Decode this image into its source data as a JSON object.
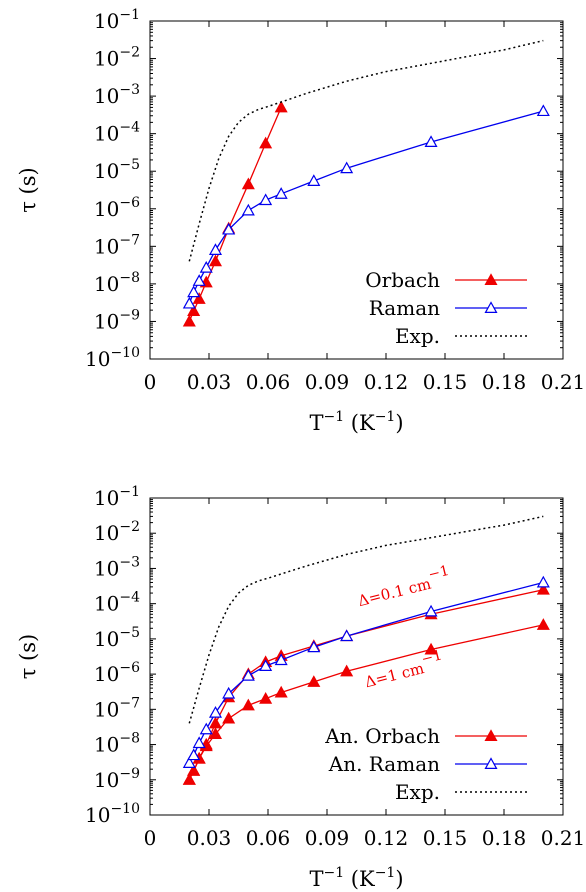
{
  "colors": {
    "orbach": "#ee0000",
    "raman": "#0000ee",
    "exp": "#000000"
  },
  "chart_data": [
    {
      "type": "line",
      "xlabel": "T−1 (K−1)",
      "ylabel": "τ (s)",
      "xlim": [
        0,
        0.21
      ],
      "ylim": [
        1e-10,
        0.1
      ],
      "yscale": "log",
      "xticks": [
        "0",
        "0.03",
        "0.06",
        "0.09",
        "0.12",
        "0.15",
        "0.18",
        "0.21"
      ],
      "yticks": [
        "10−10",
        "10−9",
        "10−8",
        "10−7",
        "10−6",
        "10−5",
        "10−4",
        "10−3",
        "10−2",
        "10−1"
      ],
      "legend_position": "bottom-right",
      "series": [
        {
          "name": "Orbach",
          "marker": "filled-triangle",
          "style": "solid",
          "color": "#ee0000",
          "x": [
            0.02,
            0.0222,
            0.025,
            0.0286,
            0.0333,
            0.04,
            0.05,
            0.0588,
            0.0667
          ],
          "y": [
            1e-09,
            1.9e-09,
            4e-09,
            1.1e-08,
            4e-08,
            3e-07,
            4.5e-06,
            5.5e-05,
            0.0005
          ]
        },
        {
          "name": "Raman",
          "marker": "open-triangle",
          "style": "solid",
          "color": "#0000ee",
          "x": [
            0.02,
            0.0222,
            0.025,
            0.0286,
            0.0333,
            0.04,
            0.05,
            0.0588,
            0.0667,
            0.0833,
            0.1,
            0.1429,
            0.2
          ],
          "y": [
            3e-09,
            6e-09,
            1.2e-08,
            2.7e-08,
            8e-08,
            2.8e-07,
            9e-07,
            1.7e-06,
            2.5e-06,
            5.5e-06,
            1.2e-05,
            6e-05,
            0.0004
          ]
        },
        {
          "name": "Exp.",
          "marker": "none",
          "style": "dotted",
          "color": "#000000",
          "x": [
            0.02,
            0.025,
            0.03,
            0.035,
            0.04,
            0.045,
            0.05,
            0.055,
            0.06,
            0.07,
            0.08,
            0.1,
            0.12,
            0.14,
            0.16,
            0.18,
            0.2
          ],
          "y": [
            4e-08,
            4e-07,
            3.5e-06,
            2.2e-05,
            8.5e-05,
            0.0002,
            0.00033,
            0.00044,
            0.00053,
            0.0008,
            0.0012,
            0.0025,
            0.0045,
            0.007,
            0.011,
            0.017,
            0.03
          ]
        }
      ]
    },
    {
      "type": "line",
      "xlabel": "T−1 (K−1)",
      "ylabel": "τ (s)",
      "xlim": [
        0,
        0.21
      ],
      "ylim": [
        1e-10,
        0.1
      ],
      "yscale": "log",
      "xticks": [
        "0",
        "0.03",
        "0.06",
        "0.09",
        "0.12",
        "0.15",
        "0.18",
        "0.21"
      ],
      "yticks": [
        "10−10",
        "10−9",
        "10−8",
        "10−7",
        "10−6",
        "10−5",
        "10−4",
        "10−3",
        "10−2",
        "10−1"
      ],
      "legend_position": "bottom-right",
      "annotations": [
        {
          "text": "Δ=0.1 cm−1",
          "x": 0.13,
          "y": 0.00018,
          "angle": -14
        },
        {
          "text": "Δ=1 cm−1",
          "x": 0.13,
          "y": 8e-07,
          "angle": -14
        }
      ],
      "series": [
        {
          "name": "An. Orbach",
          "marker": "filled-triangle",
          "style": "solid",
          "color": "#ee0000",
          "x": [
            0.02,
            0.0222,
            0.025,
            0.0286,
            0.0333,
            0.04,
            0.05,
            0.0588,
            0.0667,
            0.0833,
            0.1,
            0.1429,
            0.2
          ],
          "y": [
            1e-09,
            1.8e-09,
            4e-09,
            9e-09,
            2e-08,
            5.5e-08,
            1.3e-07,
            2e-07,
            3e-07,
            6e-07,
            1.2e-06,
            5e-06,
            2.5e-05
          ]
        },
        {
          "name": "An. Orbach (Δ=0.1)",
          "marker": "filled-triangle",
          "style": "solid",
          "color": "#ee0000",
          "x": [
            0.02,
            0.0222,
            0.025,
            0.0286,
            0.0333,
            0.04,
            0.05,
            0.0588,
            0.0667,
            0.0833,
            0.1,
            0.1429,
            0.2
          ],
          "y": [
            1e-09,
            1.8e-09,
            4e-09,
            1e-08,
            4e-08,
            2.2e-07,
            1e-06,
            2.2e-06,
            3.3e-06,
            6.3e-06,
            1.2e-05,
            5e-05,
            0.00025
          ]
        },
        {
          "name": "An. Raman",
          "marker": "open-triangle",
          "style": "solid",
          "color": "#0000ee",
          "x": [
            0.02,
            0.0222,
            0.025,
            0.0286,
            0.0333,
            0.04,
            0.05,
            0.0588,
            0.0667,
            0.0833,
            0.1,
            0.1429,
            0.2
          ],
          "y": [
            3e-09,
            5e-09,
            1.1e-08,
            2.7e-08,
            8e-08,
            2.8e-07,
            9e-07,
            1.7e-06,
            2.5e-06,
            5.8e-06,
            1.2e-05,
            6e-05,
            0.0004
          ]
        },
        {
          "name": "Exp.",
          "marker": "none",
          "style": "dotted",
          "color": "#000000",
          "x": [
            0.02,
            0.025,
            0.03,
            0.035,
            0.04,
            0.045,
            0.05,
            0.055,
            0.06,
            0.07,
            0.08,
            0.1,
            0.12,
            0.14,
            0.16,
            0.18,
            0.2
          ],
          "y": [
            4e-08,
            4e-07,
            3.5e-06,
            2.2e-05,
            8.5e-05,
            0.0002,
            0.00033,
            0.00044,
            0.00053,
            0.0008,
            0.0012,
            0.0025,
            0.0045,
            0.007,
            0.011,
            0.017,
            0.03
          ]
        }
      ],
      "legend": [
        "An. Orbach",
        "An. Raman",
        "Exp."
      ]
    }
  ]
}
